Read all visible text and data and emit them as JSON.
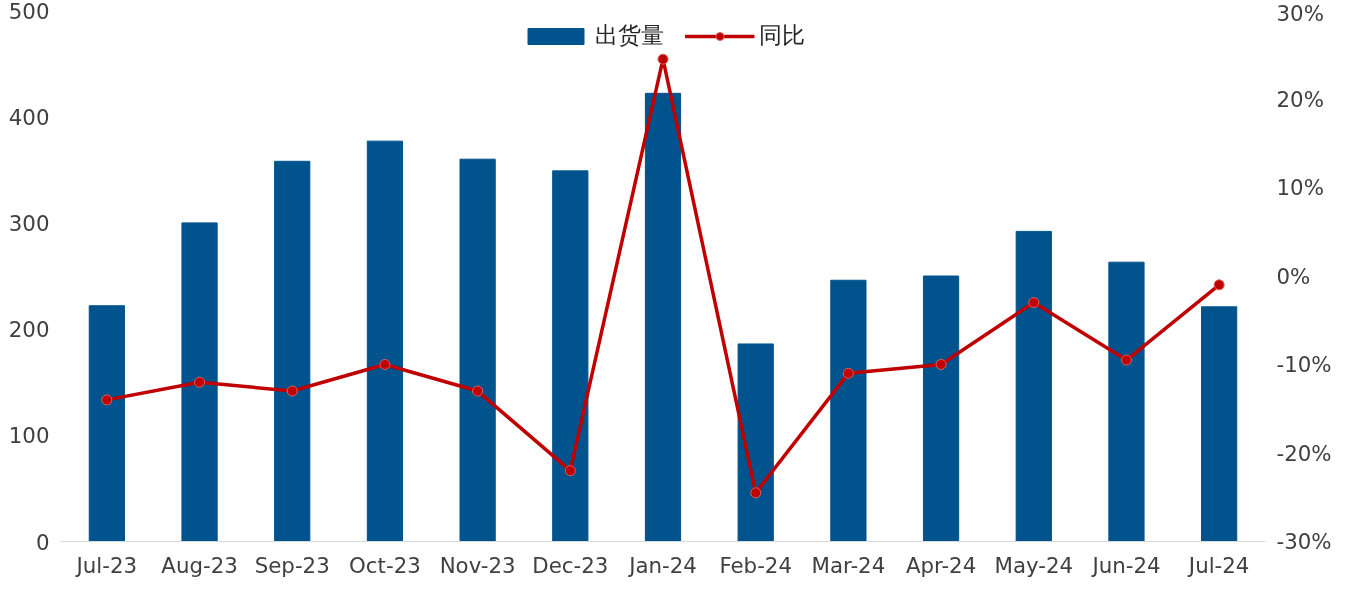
{
  "chart_data": {
    "type": "bar",
    "categories": [
      "Jul-23",
      "Aug-23",
      "Sep-23",
      "Oct-23",
      "Nov-23",
      "Dec-23",
      "Jan-24",
      "Feb-24",
      "Mar-24",
      "Apr-24",
      "May-24",
      "Jun-24",
      "Jul-24"
    ],
    "series": [
      {
        "name": "出货量",
        "color": "#00538c",
        "values": [
          222,
          300,
          358,
          377,
          360,
          349,
          422,
          186,
          246,
          250,
          292,
          263,
          221
        ]
      },
      {
        "name": "同比",
        "type": "line",
        "axis": "y2",
        "color": "#c00000",
        "marker": "circle",
        "values": [
          -14,
          -12,
          -13,
          -10,
          -13,
          -22,
          24.5,
          -24.5,
          -11,
          -10,
          -3,
          -9.5,
          -1
        ]
      }
    ],
    "ylim": [
      0,
      500
    ],
    "yticks": [
      0,
      100,
      200,
      300,
      400,
      500
    ],
    "y2lim": [
      -30,
      30
    ],
    "y2ticks": [
      {
        "value": -30,
        "label": "-30%"
      },
      {
        "value": -20,
        "label": "-20%"
      },
      {
        "value": -10,
        "label": "-10%"
      },
      {
        "value": 0,
        "label": "0%"
      },
      {
        "value": 10,
        "label": "10%"
      },
      {
        "value": 20,
        "label": "20%"
      },
      {
        "value": 30,
        "label": "30%"
      }
    ],
    "grid": false,
    "legend": "top"
  }
}
